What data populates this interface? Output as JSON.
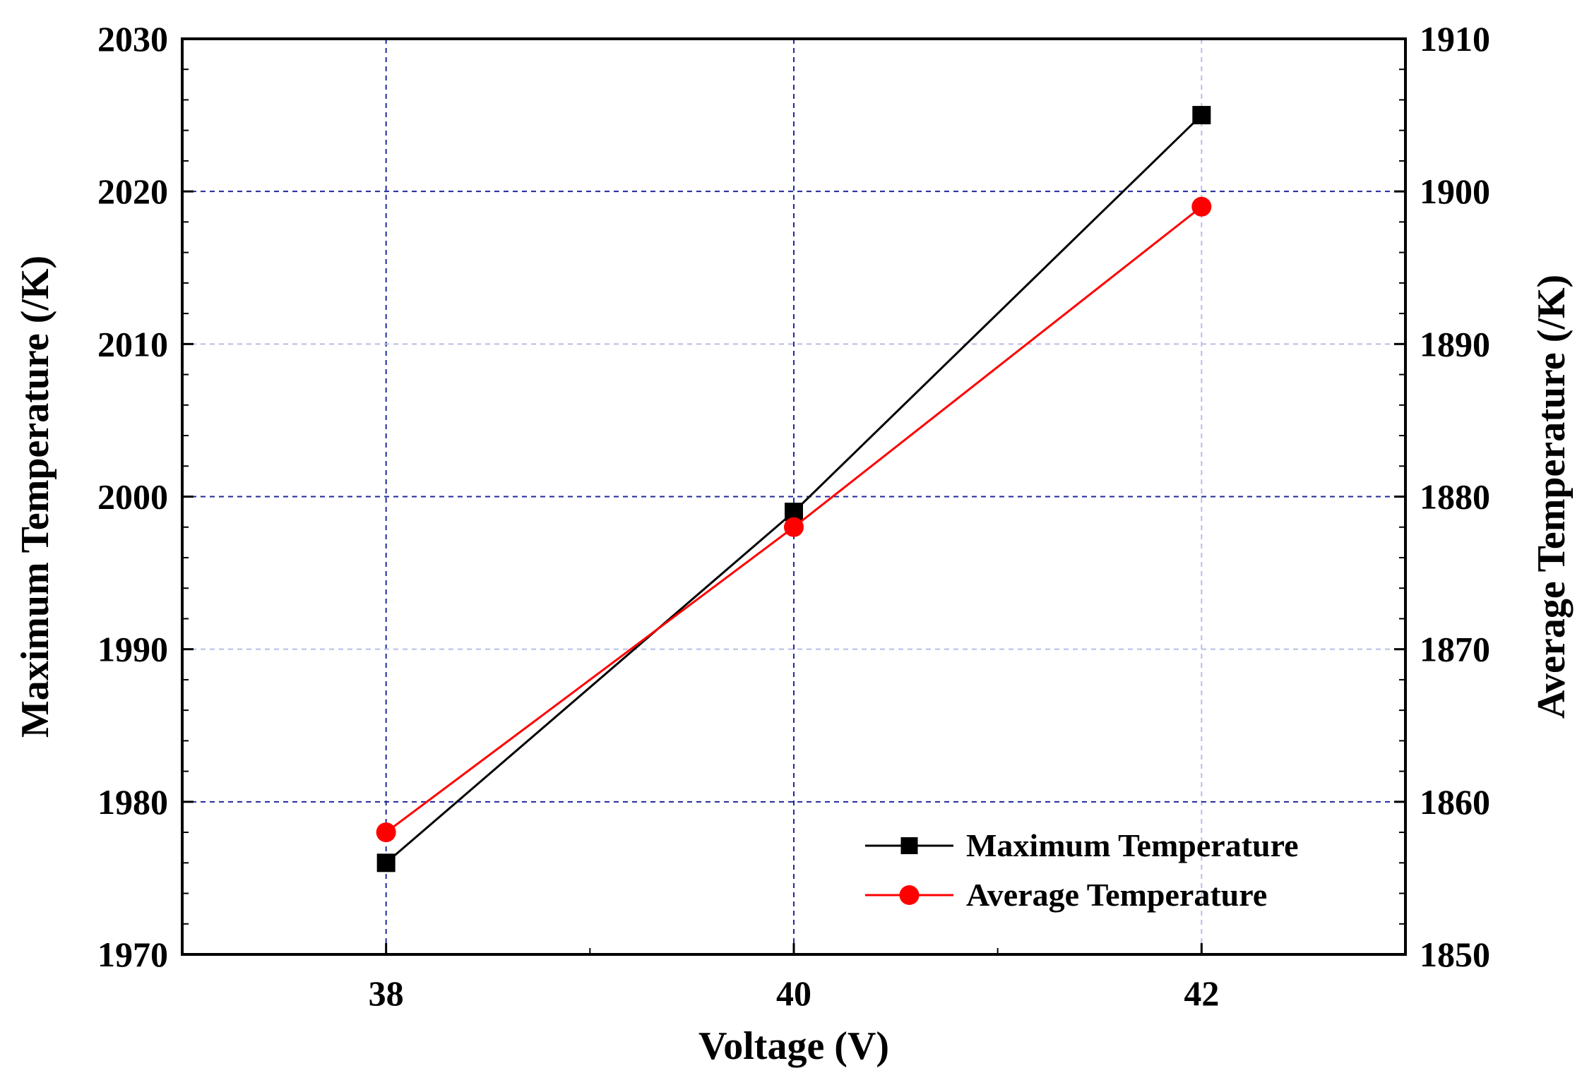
{
  "chart_data": {
    "type": "line",
    "title": "",
    "xlabel": "Voltage (V)",
    "ylabel_left": "Maximum Temperature (/K)",
    "ylabel_right": "Average Temperature (/K)",
    "x": [
      38,
      40,
      42
    ],
    "xlim": [
      37.0,
      43.0
    ],
    "xticks": [
      "38",
      "40",
      "42"
    ],
    "ylim_left": [
      1970,
      2030
    ],
    "yticks_left": [
      "1970",
      "1980",
      "1990",
      "2000",
      "2010",
      "2020",
      "2030"
    ],
    "ylim_right": [
      1850,
      1910
    ],
    "yticks_right": [
      "1850",
      "1860",
      "1870",
      "1880",
      "1890",
      "1900",
      "1910"
    ],
    "grid": true,
    "legend_position": "bottom-right",
    "series": [
      {
        "name": "Maximum Temperature",
        "axis": "left",
        "values": [
          1976,
          1999,
          2025
        ],
        "color": "#000000",
        "marker": "square"
      },
      {
        "name": "Average Temperature",
        "axis": "right",
        "values": [
          1858,
          1878,
          1899
        ],
        "color": "#ff0000",
        "marker": "circle"
      }
    ]
  }
}
